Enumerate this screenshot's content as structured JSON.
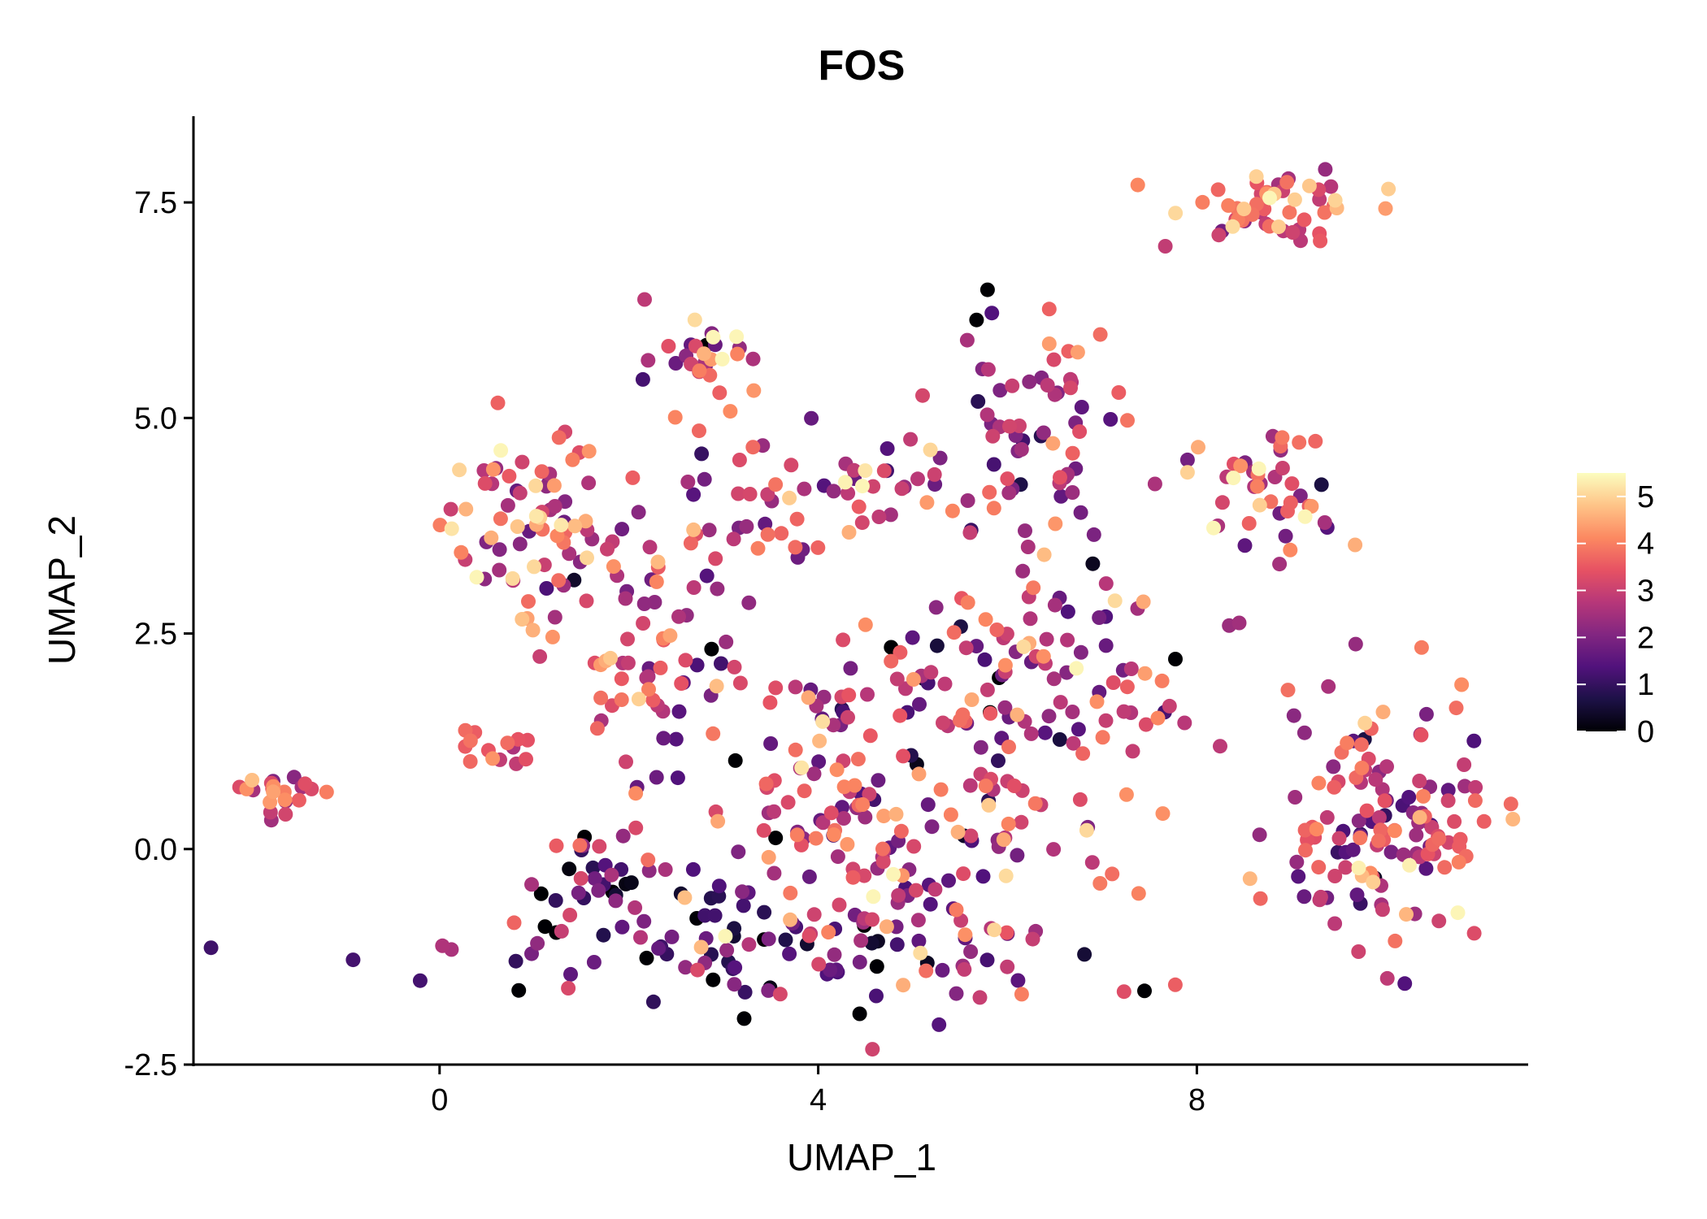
{
  "chart_data": {
    "type": "scatter",
    "title": "FOS",
    "xlabel": "UMAP_1",
    "ylabel": "UMAP_2",
    "xlim": [
      -2.6,
      11.5
    ],
    "ylim": [
      -2.5,
      8.5
    ],
    "x_ticks": [
      0,
      4,
      8
    ],
    "x_tick_labels": [
      "0",
      "4",
      "8"
    ],
    "y_ticks": [
      -2.5,
      0.0,
      2.5,
      5.0,
      7.5
    ],
    "y_tick_labels": [
      "-2.5",
      "0.0",
      "2.5",
      "5.0",
      "7.5"
    ],
    "grid": false,
    "legend_placement": "right",
    "colorscale": {
      "name": "magma",
      "min": 0,
      "max": 5.5,
      "ticks": [
        0,
        1,
        2,
        3,
        4,
        5
      ],
      "tick_labels": [
        "0",
        "1",
        "2",
        "3",
        "4",
        "5"
      ],
      "stops": [
        "#000004",
        "#1d1147",
        "#51127c",
        "#822681",
        "#b73779",
        "#e75263",
        "#fc8961",
        "#fec488",
        "#fcfdbf"
      ]
    },
    "clusters": [
      {
        "cx": -1.7,
        "cy": 0.65,
        "sx": 0.25,
        "sy": 0.12,
        "n": 22,
        "mean": 3.6,
        "sd": 0.9
      },
      {
        "cx": 0.9,
        "cy": 3.8,
        "sx": 0.45,
        "sy": 0.55,
        "n": 70,
        "mean": 3.4,
        "sd": 1.1
      },
      {
        "cx": 0.6,
        "cy": 1.2,
        "sx": 0.3,
        "sy": 0.15,
        "n": 14,
        "mean": 3.6,
        "sd": 0.8
      },
      {
        "cx": 2.8,
        "cy": 5.7,
        "sx": 0.3,
        "sy": 0.3,
        "n": 30,
        "mean": 3.3,
        "sd": 1.2
      },
      {
        "cx": 3.3,
        "cy": 3.6,
        "sx": 0.7,
        "sy": 0.6,
        "n": 45,
        "mean": 2.8,
        "sd": 1.1
      },
      {
        "cx": 4.5,
        "cy": 4.2,
        "sx": 0.45,
        "sy": 0.2,
        "n": 25,
        "mean": 2.8,
        "sd": 1.1
      },
      {
        "cx": 6.1,
        "cy": 4.8,
        "sx": 0.55,
        "sy": 0.75,
        "n": 75,
        "mean": 2.5,
        "sd": 1.2
      },
      {
        "cx": 8.8,
        "cy": 7.5,
        "sx": 0.5,
        "sy": 0.2,
        "n": 55,
        "mean": 3.7,
        "sd": 0.9
      },
      {
        "cx": 8.6,
        "cy": 4.2,
        "sx": 0.45,
        "sy": 0.4,
        "n": 45,
        "mean": 3.3,
        "sd": 1.1
      },
      {
        "cx": 2.1,
        "cy": 2.2,
        "sx": 0.5,
        "sy": 0.8,
        "n": 50,
        "mean": 2.9,
        "sd": 1.2
      },
      {
        "cx": 4.6,
        "cy": 0.3,
        "sx": 1.3,
        "sy": 0.9,
        "n": 180,
        "mean": 2.8,
        "sd": 1.2
      },
      {
        "cx": 5.3,
        "cy": 1.9,
        "sx": 1.2,
        "sy": 0.6,
        "n": 80,
        "mean": 2.5,
        "sd": 1.2
      },
      {
        "cx": 3.6,
        "cy": -1.2,
        "sx": 1.6,
        "sy": 0.35,
        "n": 95,
        "mean": 1.7,
        "sd": 1.1
      },
      {
        "cx": 1.6,
        "cy": -0.3,
        "sx": 0.35,
        "sy": 0.3,
        "n": 30,
        "mean": 1.2,
        "sd": 1.0
      },
      {
        "cx": 6.8,
        "cy": 2.3,
        "sx": 0.5,
        "sy": 0.5,
        "n": 28,
        "mean": 2.7,
        "sd": 1.1
      },
      {
        "cx": 7.5,
        "cy": 1.6,
        "sx": 0.5,
        "sy": 0.2,
        "n": 10,
        "mean": 3.2,
        "sd": 0.8
      },
      {
        "cx": 9.9,
        "cy": 0.3,
        "sx": 0.55,
        "sy": 0.7,
        "n": 120,
        "mean": 2.8,
        "sd": 1.2
      },
      {
        "cx": 10.5,
        "cy": 0.0,
        "sx": 0.25,
        "sy": 0.25,
        "n": 18,
        "mean": 3.6,
        "sd": 0.8
      }
    ]
  }
}
